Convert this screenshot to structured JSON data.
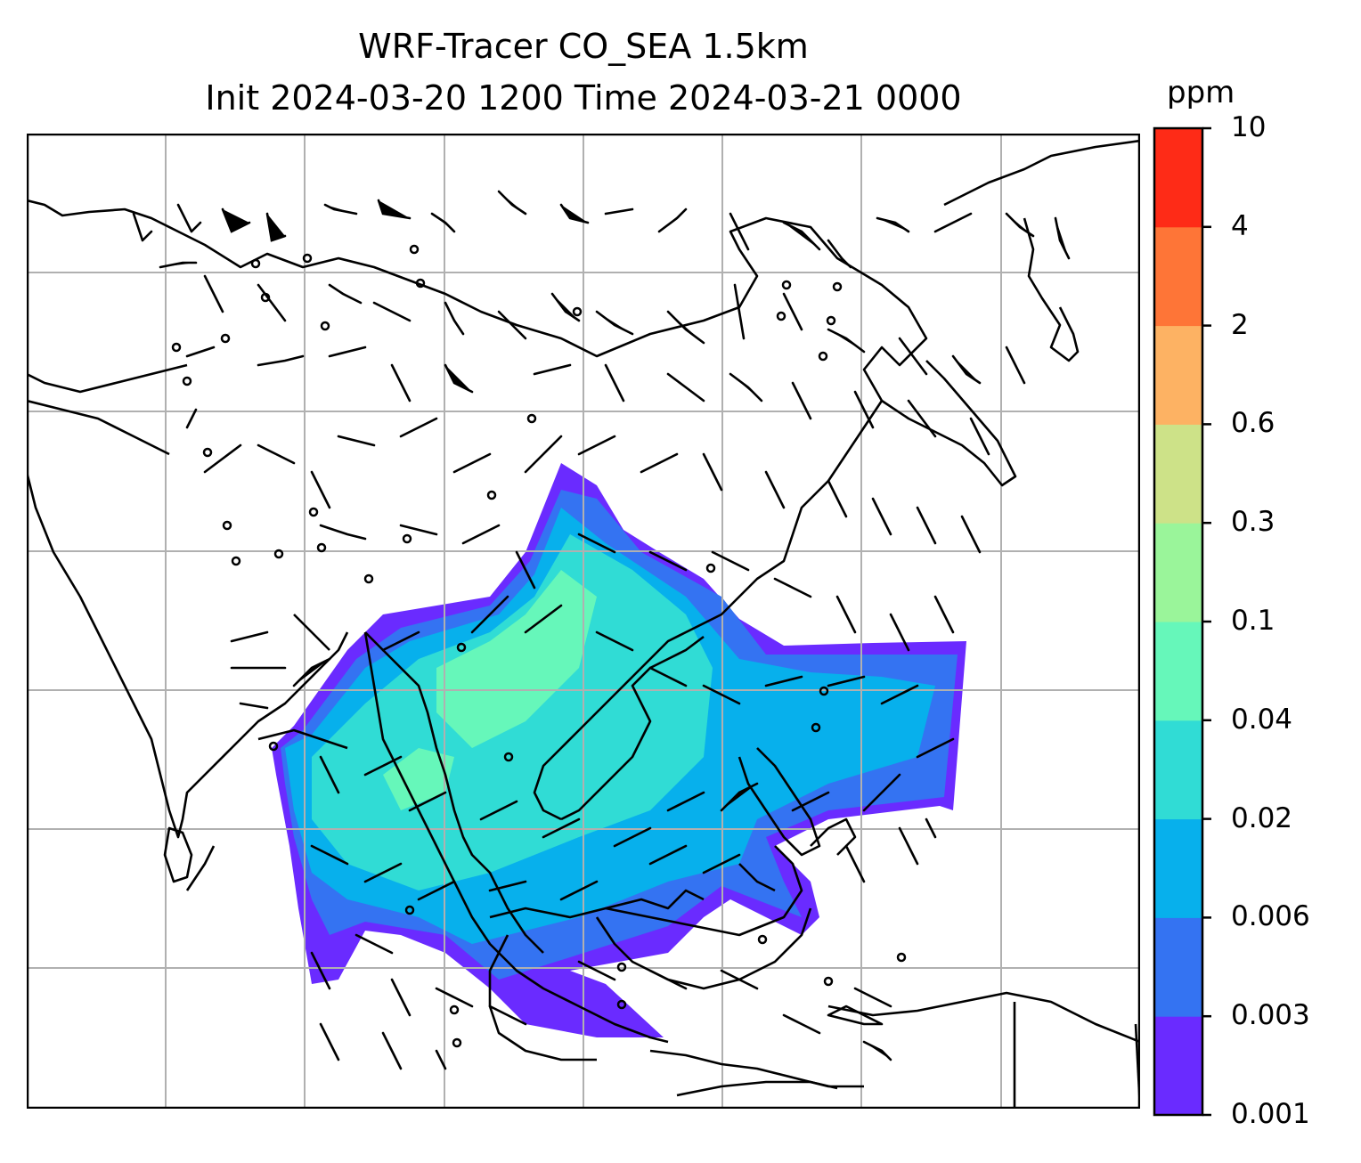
{
  "title": {
    "line1": "WRF-Tracer CO_SEA 1.5km",
    "line2": "Init 2024-03-20 1200 Time 2024-03-21 0000"
  },
  "colorbar": {
    "unit": "ppm",
    "levels": [
      "0.001",
      "0.003",
      "0.006",
      "0.02",
      "0.04",
      "0.1",
      "0.3",
      "0.6",
      "2",
      "4",
      "10"
    ],
    "colors": [
      "#6a2bff",
      "#3473f2",
      "#07b0ec",
      "#30dcd5",
      "#66f7ba",
      "#9af59a",
      "#cde288",
      "#fdb263",
      "#fe7537",
      "#fe2b17"
    ]
  },
  "map": {
    "projection": "lat-lon",
    "gridlines": true,
    "coastlines": true,
    "wind_barbs": true,
    "calm_markers": true
  },
  "colors": {
    "coastline": "#000000",
    "grid": "#b0b0b0",
    "frame": "#000000"
  }
}
